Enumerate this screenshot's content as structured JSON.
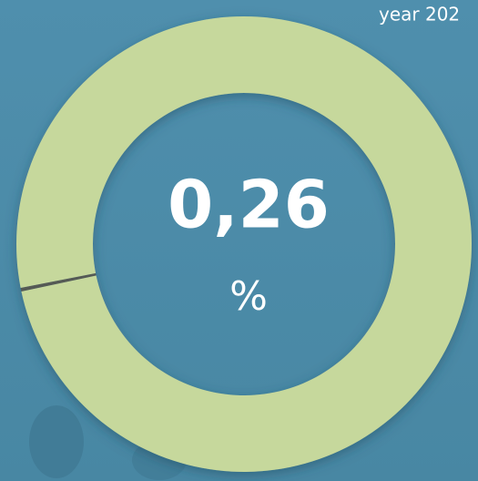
{
  "chart_data": {
    "type": "donut",
    "subtitle": "year 202",
    "values": [
      0.26,
      99.74
    ],
    "colors": [
      "#555a55",
      "#c6d89c"
    ],
    "label": "0,26",
    "unit": "%"
  }
}
